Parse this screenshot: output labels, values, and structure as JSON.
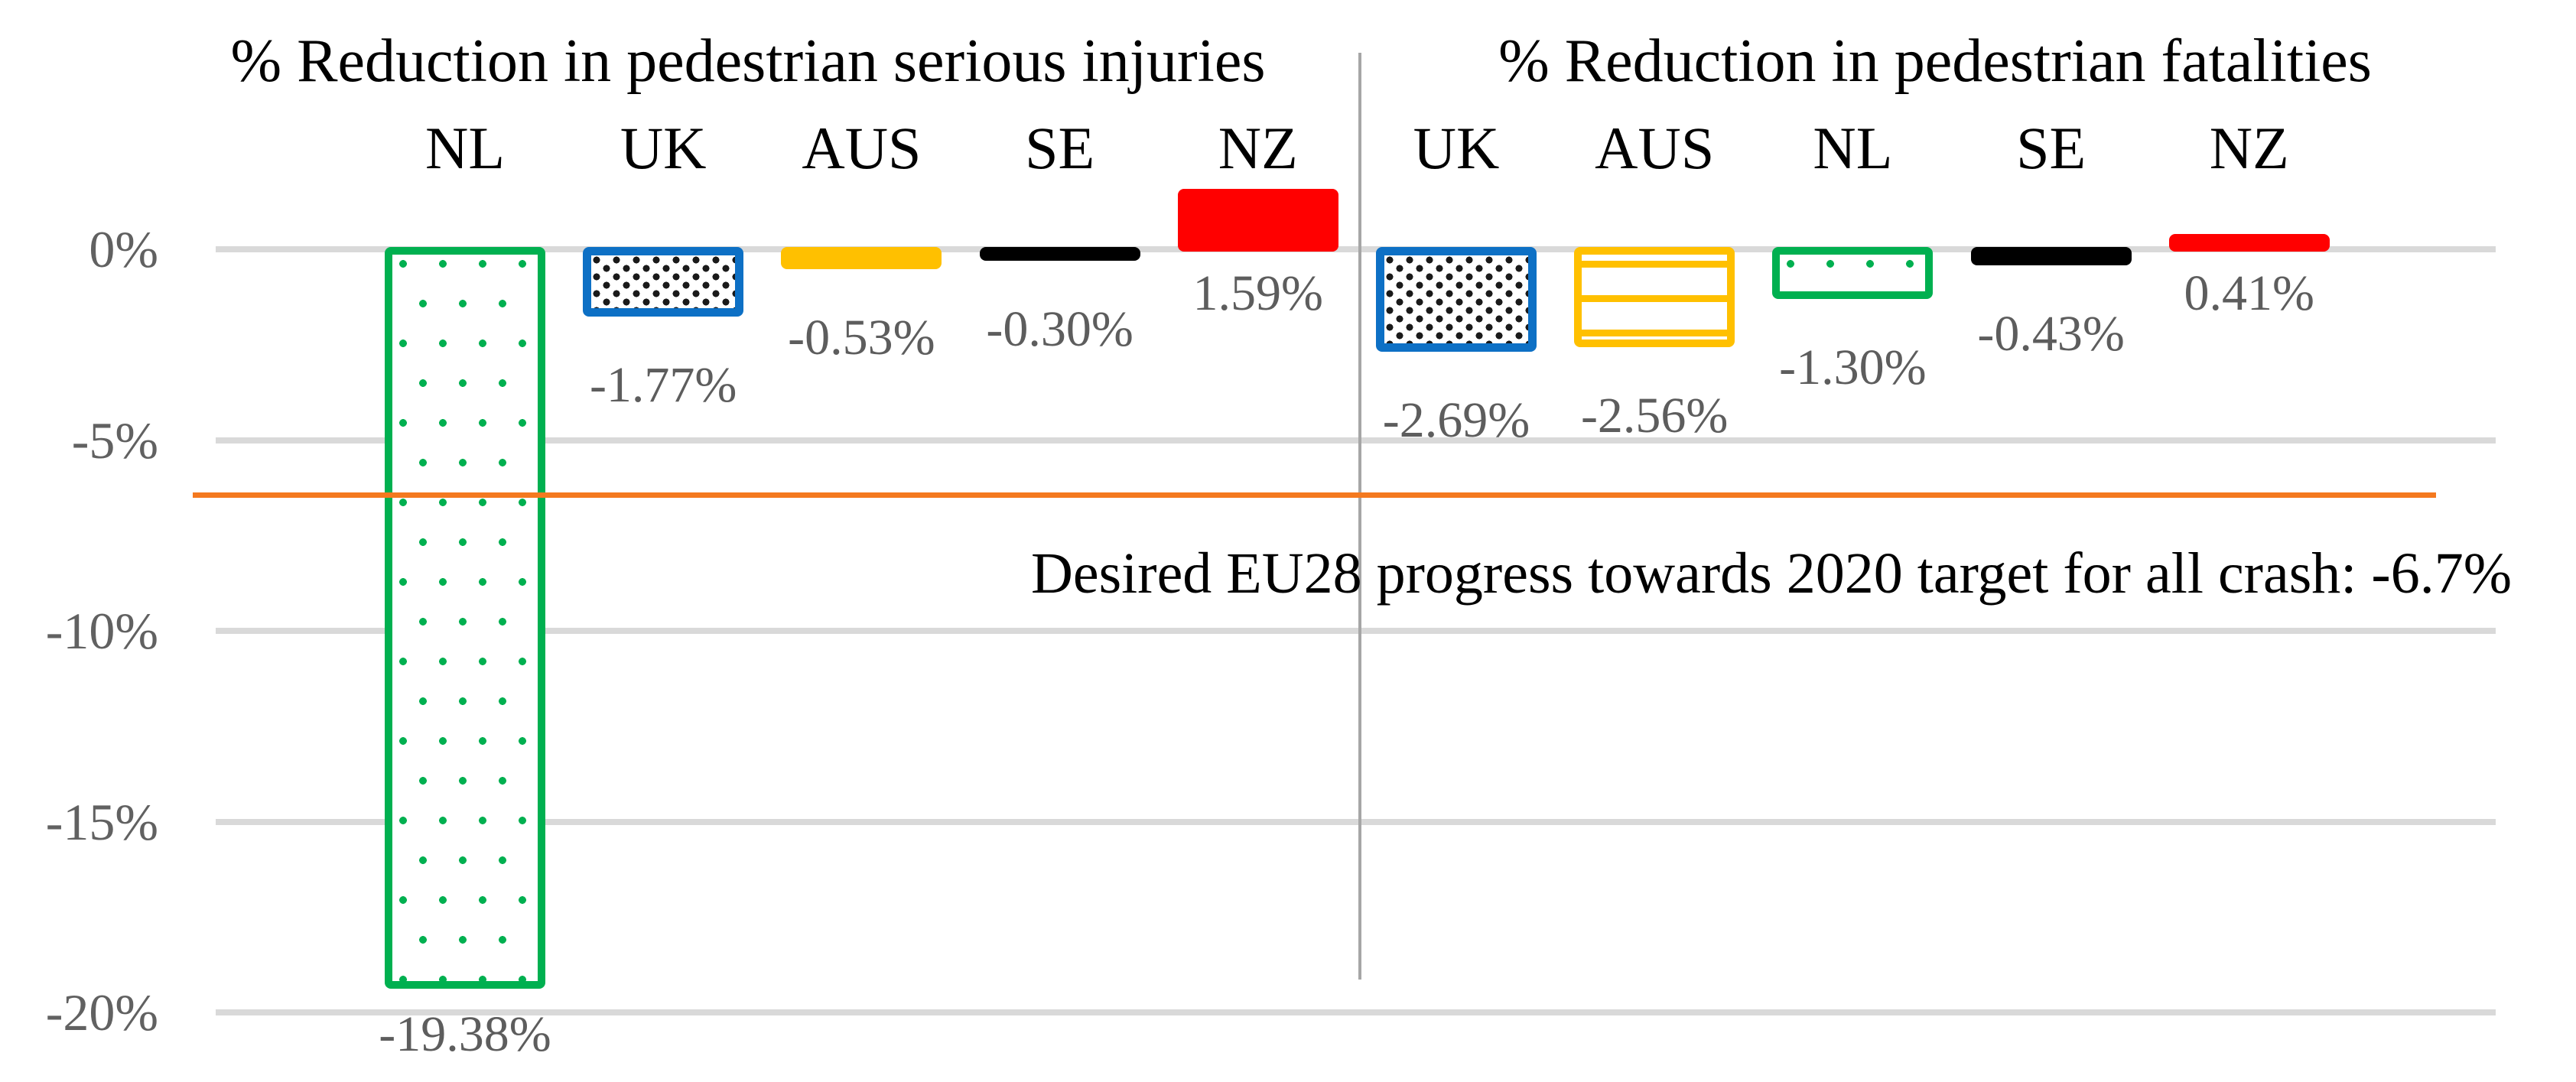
{
  "chart_data": {
    "type": "bar",
    "unit": "%",
    "y_axis": {
      "ticks": [
        {
          "label": "0%",
          "value": 0
        },
        {
          "label": "-5%",
          "value": -5
        },
        {
          "label": "-10%",
          "value": -10
        },
        {
          "label": "-15%",
          "value": -15
        },
        {
          "label": "-20%",
          "value": -20
        }
      ],
      "range": [
        -20.5,
        3.5
      ],
      "gridlines": "on"
    },
    "panels": [
      {
        "title": "% Reduction in pedestrian serious injuries",
        "bars": [
          {
            "category": "NL",
            "value": -19.38,
            "label": "-19.38%",
            "style": "green-dots"
          },
          {
            "category": "UK",
            "value": -1.77,
            "label": "-1.77%",
            "style": "blue-dots"
          },
          {
            "category": "AUS",
            "value": -0.53,
            "label": "-0.53%",
            "style": "yellow-stripes"
          },
          {
            "category": "SE",
            "value": -0.3,
            "label": "-0.30%",
            "style": "black-solid"
          },
          {
            "category": "NZ",
            "value": 1.59,
            "label": "1.59%",
            "style": "red-solid"
          }
        ]
      },
      {
        "title": "% Reduction in pedestrian fatalities",
        "bars": [
          {
            "category": "UK",
            "value": -2.69,
            "label": "-2.69%",
            "style": "blue-dots"
          },
          {
            "category": "AUS",
            "value": -2.56,
            "label": "-2.56%",
            "style": "yellow-stripes"
          },
          {
            "category": "NL",
            "value": -1.3,
            "label": "-1.30%",
            "style": "green-dots"
          },
          {
            "category": "SE",
            "value": -0.43,
            "label": "-0.43%",
            "style": "black-solid"
          },
          {
            "category": "NZ",
            "value": 0.41,
            "label": "0.41%",
            "style": "red-solid"
          }
        ]
      }
    ],
    "reference_line": {
      "value": -6.7,
      "label": "Desired EU28 progress towards 2020 target for all crash: -6.7%",
      "color": "#F4791F"
    },
    "legend": "none"
  },
  "colors": {
    "green": "#00B050",
    "blue": "#0D70C5",
    "yellow": "#FFC000",
    "black": "#000000",
    "red": "#FF0000",
    "reference_orange": "#F4791F",
    "gridline_gray": "#D9D9D9",
    "divider_gray": "#A6A6A6",
    "label_gray": "#5D5D5D"
  }
}
